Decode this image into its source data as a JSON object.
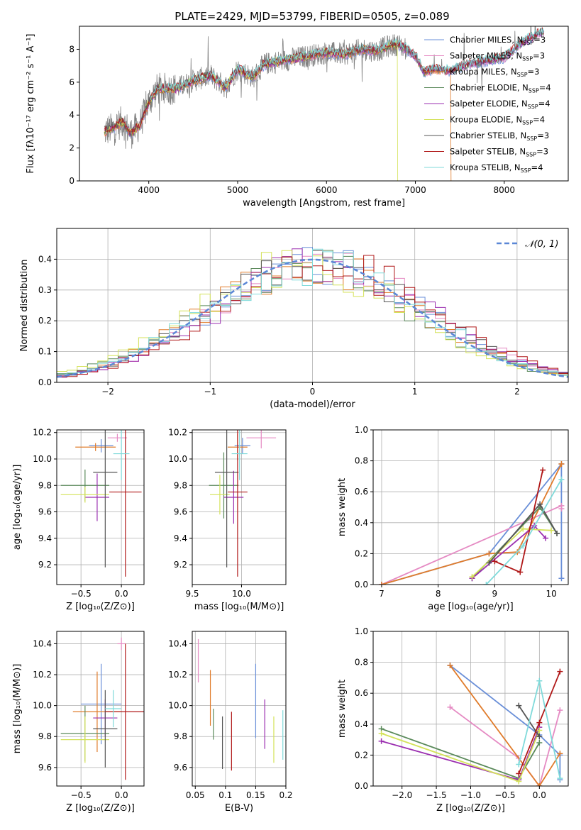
{
  "figure": {
    "title": "PLATE=2429, MJD=53799, FIBERID=0505, z=0.089"
  },
  "series_styles": [
    {
      "name": "Chabrier MILES",
      "nssp": "3",
      "color": "#6a8fd8"
    },
    {
      "name": "Salpeter MILES",
      "nssp": "3",
      "color": "#e58ac3"
    },
    {
      "name": "Kroupa MILES",
      "nssp": "3",
      "color": "#e07b2a"
    },
    {
      "name": "Chabrier ELODIE",
      "nssp": "4",
      "color": "#5b8a5b"
    },
    {
      "name": "Salpeter ELODIE",
      "nssp": "4",
      "color": "#9b2fb0"
    },
    {
      "name": "Kroupa ELODIE",
      "nssp": "4",
      "color": "#d4e25a"
    },
    {
      "name": "Chabrier STELIB",
      "nssp": "3",
      "color": "#555555"
    },
    {
      "name": "Salpeter STELIB",
      "nssp": "3",
      "color": "#b01818"
    },
    {
      "name": "Kroupa STELIB",
      "nssp": "4",
      "color": "#7fdada"
    }
  ],
  "chart_data": [
    {
      "id": "spectrum",
      "type": "line",
      "xlabel": "wavelength [Angstrom, rest frame]",
      "ylabel": "Flux [fλ10⁻¹⁷ erg cm⁻² s⁻¹ A⁻¹]",
      "xlim": [
        3220,
        8720
      ],
      "ylim": [
        0,
        9.4
      ],
      "xticks": [
        4000,
        5000,
        6000,
        7000,
        8000
      ],
      "yticks": [
        0,
        2,
        4,
        6,
        8
      ],
      "legend": "top-right",
      "data_color": "#808080",
      "data_range": [
        3500,
        8450
      ],
      "model_envelope": [
        [
          3500,
          3.0
        ],
        [
          3600,
          3.2
        ],
        [
          3700,
          3.6
        ],
        [
          3800,
          2.9
        ],
        [
          3900,
          3.4
        ],
        [
          4000,
          4.8
        ],
        [
          4100,
          5.6
        ],
        [
          4300,
          5.6
        ],
        [
          4500,
          6.1
        ],
        [
          4700,
          6.4
        ],
        [
          4861,
          5.7
        ],
        [
          5000,
          6.8
        ],
        [
          5175,
          6.3
        ],
        [
          5300,
          7.1
        ],
        [
          5500,
          7.3
        ],
        [
          5700,
          7.5
        ],
        [
          5900,
          7.7
        ],
        [
          6000,
          7.8
        ],
        [
          6200,
          7.7
        ],
        [
          6400,
          8.0
        ],
        [
          6563,
          7.9
        ],
        [
          6700,
          8.2
        ],
        [
          6800,
          8.3
        ],
        [
          6900,
          8.0
        ],
        [
          7000,
          7.6
        ],
        [
          7100,
          6.6
        ],
        [
          7200,
          6.8
        ],
        [
          7400,
          6.7
        ],
        [
          7600,
          7.1
        ],
        [
          7800,
          7.3
        ],
        [
          8000,
          7.5
        ],
        [
          8200,
          8.4
        ],
        [
          8400,
          9.0
        ]
      ]
    },
    {
      "id": "residuals",
      "type": "bar",
      "xlabel": "(data-model)/error",
      "ylabel": "Normed distribution",
      "xlim": [
        -2.5,
        2.5
      ],
      "ylim": [
        0,
        0.5
      ],
      "xticks": [
        -2,
        -1,
        0,
        1,
        2
      ],
      "yticks": [
        0.0,
        0.1,
        0.2,
        0.3,
        0.4
      ],
      "legend_label": "𝒩(0, 1)",
      "legend": "top-right",
      "gaussian_color": "#5b87d6",
      "bin_width": 0.1,
      "bin_start": -2.5
    },
    {
      "id": "age_vs_Z",
      "type": "scatter",
      "xlabel": "Z [log₁₀(Z/Z⊙)]",
      "ylabel": "age  [log₁₀(age/yr)]",
      "xlim": [
        -0.8,
        0.28
      ],
      "ylim": [
        9.05,
        10.22
      ],
      "xticks": [
        -0.5,
        0.0
      ],
      "yticks": [
        9.2,
        9.4,
        9.6,
        9.8,
        10.0,
        10.2
      ],
      "points": [
        {
          "x": -0.25,
          "y": 10.1,
          "xerr": 0.15,
          "yerr": 0.05
        },
        {
          "x": -0.05,
          "y": 10.16,
          "xerr": 0.12,
          "yerr": 0.03
        },
        {
          "x": -0.32,
          "y": 10.09,
          "xerr": 0.25,
          "yerr": 0.03
        },
        {
          "x": -0.45,
          "y": 9.8,
          "xerr": 0.3,
          "yerr": 0.12
        },
        {
          "x": -0.3,
          "y": 9.71,
          "xerr": 0.15,
          "yerr": 0.18
        },
        {
          "x": -0.45,
          "y": 9.73,
          "xerr": 0.3,
          "yerr": 0.06
        },
        {
          "x": -0.2,
          "y": 9.9,
          "xerr": 0.15,
          "yerr": 0.72
        },
        {
          "x": 0.05,
          "y": 9.75,
          "xerr": 0.2,
          "yerr": 0.64
        },
        {
          "x": 0.0,
          "y": 10.04,
          "xerr": 0.1,
          "yerr": 0.2
        }
      ]
    },
    {
      "id": "age_vs_mass",
      "type": "scatter",
      "xlabel": "mass [log₁₀(M/M⊙)]",
      "ylabel": "",
      "xlim": [
        9.5,
        10.45
      ],
      "ylim": [
        9.05,
        10.22
      ],
      "xticks": [
        9.5,
        10.0
      ],
      "yticks": [
        9.2,
        9.4,
        9.6,
        9.8,
        10.0,
        10.2
      ],
      "points": [
        {
          "x": 10.01,
          "y": 10.1,
          "xerr": 0.08,
          "yerr": 0.06
        },
        {
          "x": 10.2,
          "y": 10.16,
          "xerr": 0.15,
          "yerr": 0.08
        },
        {
          "x": 9.96,
          "y": 10.09,
          "xerr": 0.1,
          "yerr": 0.1
        },
        {
          "x": 9.82,
          "y": 9.8,
          "xerr": 0.15,
          "yerr": 0.25
        },
        {
          "x": 9.92,
          "y": 9.71,
          "xerr": 0.1,
          "yerr": 0.2
        },
        {
          "x": 9.78,
          "y": 9.73,
          "xerr": 0.1,
          "yerr": 0.15
        },
        {
          "x": 9.85,
          "y": 9.9,
          "xerr": 0.12,
          "yerr": 0.72
        },
        {
          "x": 9.96,
          "y": 9.75,
          "xerr": 0.1,
          "yerr": 0.64
        },
        {
          "x": 9.98,
          "y": 10.04,
          "xerr": 0.08,
          "yerr": 0.2
        }
      ]
    },
    {
      "id": "weight_vs_age",
      "type": "line",
      "xlabel": "age  [log₁₀(age/yr)]",
      "ylabel": "mass weight",
      "xlim": [
        6.85,
        10.3
      ],
      "ylim": [
        0,
        1.0
      ],
      "xticks": [
        7,
        8,
        9,
        10
      ],
      "yticks": [
        0.0,
        0.2,
        0.4,
        0.6,
        0.8,
        1.0
      ],
      "series": [
        {
          "x": [
            7.0,
            8.9,
            10.18,
            10.18
          ],
          "y": [
            0.0,
            0.2,
            0.78,
            0.04
          ]
        },
        {
          "x": [
            7.0,
            10.18,
            10.18
          ],
          "y": [
            0.0,
            0.51,
            0.49
          ]
        },
        {
          "x": [
            7.0,
            8.9,
            9.4,
            10.18
          ],
          "y": [
            0.0,
            0.2,
            0.21,
            0.78
          ]
        },
        {
          "x": [
            8.6,
            9.8,
            10.1
          ],
          "y": [
            0.04,
            0.5,
            0.33
          ]
        },
        {
          "x": [
            8.6,
            9.7,
            9.9
          ],
          "y": [
            0.04,
            0.38,
            0.3
          ]
        },
        {
          "x": [
            8.6,
            9.5,
            10.0
          ],
          "y": [
            0.05,
            0.36,
            0.35
          ]
        },
        {
          "x": [
            8.9,
            9.8,
            10.1
          ],
          "y": [
            0.14,
            0.52,
            0.33
          ]
        },
        {
          "x": [
            9.0,
            9.45,
            9.85
          ],
          "y": [
            0.15,
            0.08,
            0.74
          ]
        },
        {
          "x": [
            8.85,
            9.5,
            10.18
          ],
          "y": [
            0.0,
            0.25,
            0.68
          ]
        }
      ]
    },
    {
      "id": "mass_vs_Z",
      "type": "scatter",
      "xlabel": "Z [log₁₀(Z/Z⊙)]",
      "ylabel": "mass [log₁₀(M/M⊙)]",
      "xlim": [
        -0.8,
        0.28
      ],
      "ylim": [
        9.48,
        10.48
      ],
      "xticks": [
        -0.5,
        0.0
      ],
      "yticks": [
        9.6,
        9.8,
        10.0,
        10.2,
        10.4
      ],
      "points": [
        {
          "x": -0.25,
          "y": 10.01,
          "xerr": 0.25,
          "yerr": 0.26
        },
        {
          "x": 0.0,
          "y": 10.4,
          "xerr": 0.05,
          "yerr": 0.04
        },
        {
          "x": -0.3,
          "y": 9.96,
          "xerr": 0.3,
          "yerr": 0.26
        },
        {
          "x": -0.45,
          "y": 9.82,
          "xerr": 0.3,
          "yerr": 0.18
        },
        {
          "x": -0.2,
          "y": 9.92,
          "xerr": 0.15,
          "yerr": 0.12
        },
        {
          "x": -0.45,
          "y": 9.78,
          "xerr": 0.3,
          "yerr": 0.15
        },
        {
          "x": -0.2,
          "y": 9.85,
          "xerr": 0.15,
          "yerr": 0.25
        },
        {
          "x": 0.05,
          "y": 9.96,
          "xerr": 0.25,
          "yerr": 0.44
        },
        {
          "x": -0.1,
          "y": 9.98,
          "xerr": 0.1,
          "yerr": 0.12
        }
      ]
    },
    {
      "id": "mass_vs_EBV",
      "type": "scatter",
      "xlabel": "E(B-V)",
      "ylabel": "",
      "xlim": [
        0.045,
        0.2
      ],
      "ylim": [
        9.48,
        10.48
      ],
      "xticks": [
        0.05,
        0.1,
        0.15,
        0.2
      ],
      "yticks": [
        9.6,
        9.8,
        10.0,
        10.2,
        10.4
      ],
      "points": [
        {
          "x": 0.15,
          "y": 10.03,
          "yerr": 0.24
        },
        {
          "x": 0.055,
          "y": 10.29,
          "yerr": 0.14
        },
        {
          "x": 0.075,
          "y": 10.05,
          "yerr": 0.18
        },
        {
          "x": 0.08,
          "y": 9.88,
          "yerr": 0.1
        },
        {
          "x": 0.165,
          "y": 9.88,
          "yerr": 0.16
        },
        {
          "x": 0.18,
          "y": 9.78,
          "yerr": 0.15
        },
        {
          "x": 0.095,
          "y": 9.76,
          "yerr": 0.17
        },
        {
          "x": 0.11,
          "y": 9.77,
          "yerr": 0.19
        },
        {
          "x": 0.195,
          "y": 9.81,
          "yerr": 0.16
        }
      ]
    },
    {
      "id": "weight_vs_Z",
      "type": "line",
      "xlabel": "Z [log₁₀(Z/Z⊙)]",
      "ylabel": "mass weight",
      "xlim": [
        -2.42,
        0.42
      ],
      "ylim": [
        0,
        1.0
      ],
      "xticks": [
        -2.0,
        -1.5,
        -1.0,
        -0.5,
        0.0
      ],
      "yticks": [
        0.0,
        0.2,
        0.4,
        0.6,
        0.8,
        1.0
      ],
      "series": [
        {
          "x": [
            -1.3,
            0.0,
            0.3,
            0.3
          ],
          "y": [
            0.78,
            0.33,
            0.2,
            0.04
          ]
        },
        {
          "x": [
            -1.3,
            -0.3,
            0.0,
            0.3
          ],
          "y": [
            0.51,
            0.18,
            0.0,
            0.49
          ]
        },
        {
          "x": [
            -1.3,
            0.0,
            0.3
          ],
          "y": [
            0.78,
            0.0,
            0.21
          ]
        },
        {
          "x": [
            -2.3,
            -0.3,
            0.0
          ],
          "y": [
            0.37,
            0.05,
            0.28
          ]
        },
        {
          "x": [
            -2.3,
            -0.3,
            0.0
          ],
          "y": [
            0.29,
            0.04,
            0.38
          ]
        },
        {
          "x": [
            -2.3,
            -0.3,
            0.0
          ],
          "y": [
            0.34,
            0.03,
            0.36
          ]
        },
        {
          "x": [
            -0.3,
            0.0
          ],
          "y": [
            0.52,
            0.32
          ]
        },
        {
          "x": [
            -0.3,
            0.0,
            0.3
          ],
          "y": [
            0.08,
            0.41,
            0.74
          ]
        },
        {
          "x": [
            -0.3,
            0.0,
            0.3
          ],
          "y": [
            0.14,
            0.68,
            0.05
          ]
        }
      ]
    }
  ]
}
